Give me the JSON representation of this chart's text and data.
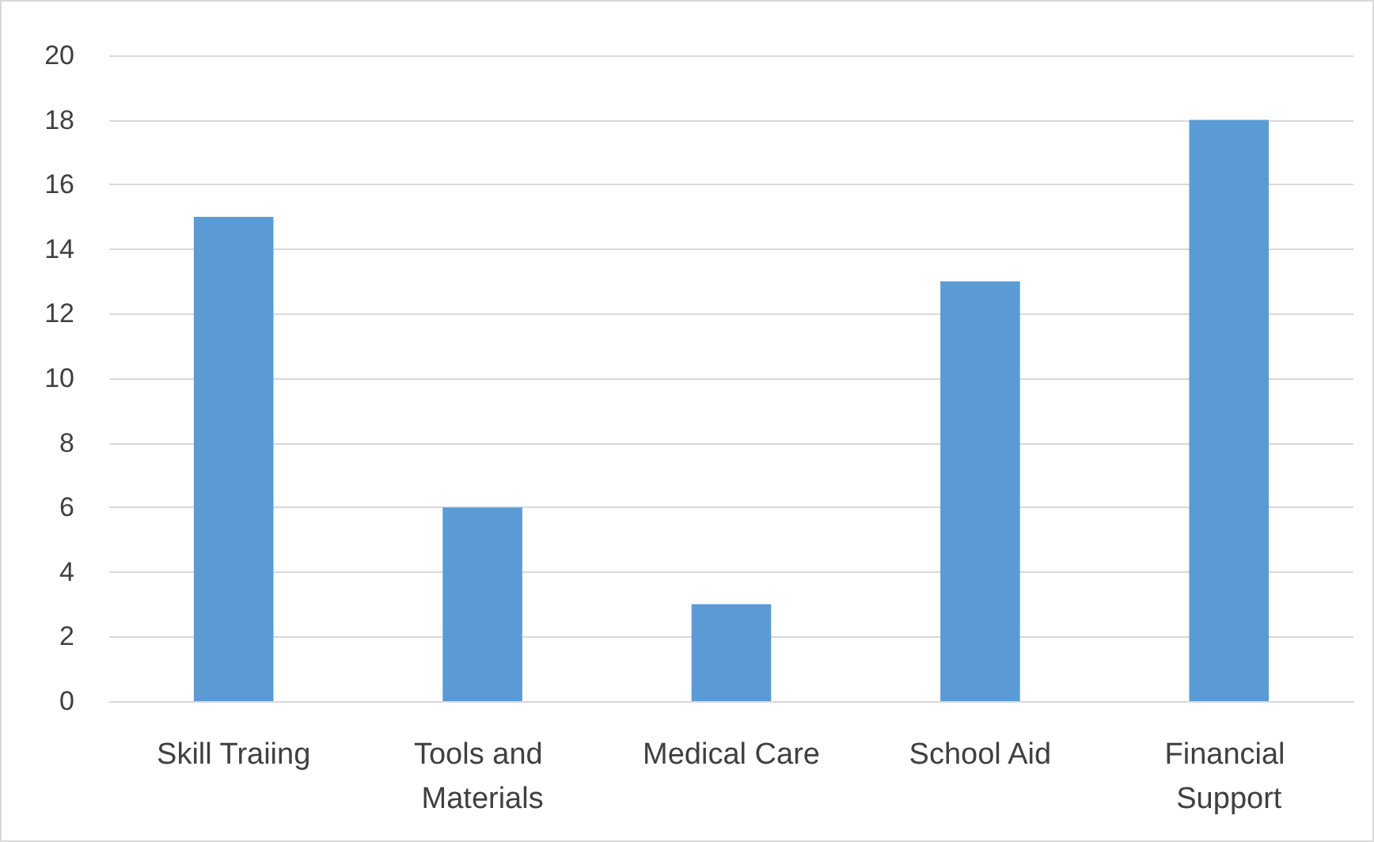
{
  "chart_data": {
    "type": "bar",
    "categories": [
      "Skill Traiing",
      "Tools and Materials",
      "Medical Care",
      "School Aid",
      "Financial Support"
    ],
    "values": [
      15,
      6,
      3,
      13,
      18
    ],
    "color": "#5b9bd5",
    "ylim": [
      0,
      20
    ],
    "yticks": [
      0,
      2,
      4,
      6,
      8,
      10,
      12,
      14,
      16,
      18,
      20
    ],
    "grid": "y"
  }
}
